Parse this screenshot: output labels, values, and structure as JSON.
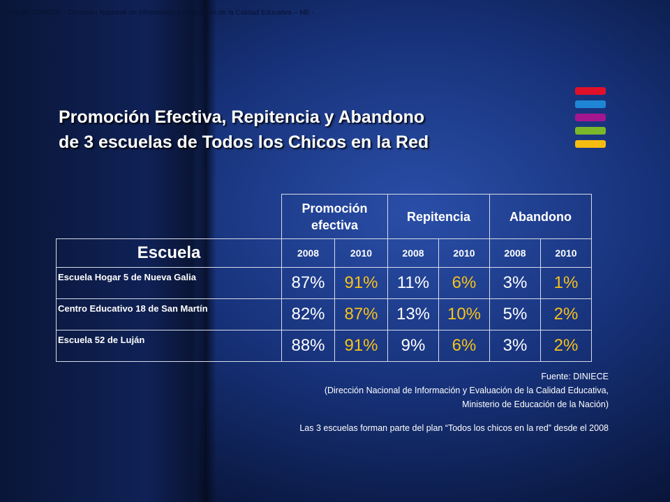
{
  "top_note": "Fuente: DINIECE – Dirección Nacional de Información y Evaluación de la Calidad Educativa – ME -",
  "title": {
    "line1": "Promoción Efectiva, Repitencia y Abandono",
    "line2": "de 3 escuelas de Todos los Chicos en la Red"
  },
  "colors": {
    "highlight": "#f7c21a",
    "logo": [
      "#e0102a",
      "#1f86d6",
      "#a4168f",
      "#7bb72b",
      "#f5bc12"
    ]
  },
  "table": {
    "school_header": "Escuela",
    "groups": [
      "Promoción efectiva",
      "Repitencia",
      "Abandono"
    ],
    "years": [
      "2008",
      "2010",
      "2008",
      "2010",
      "2008",
      "2010"
    ],
    "rows": [
      {
        "school": "Escuela Hogar 5 de Nueva Galia",
        "values": [
          "87%",
          "91%",
          "11%",
          "6%",
          "3%",
          "1%"
        ]
      },
      {
        "school": "Centro Educativo 18 de San Martín",
        "values": [
          "82%",
          "87%",
          "13%",
          "10%",
          "5%",
          "2%"
        ]
      },
      {
        "school": "Escuela 52 de Luján",
        "values": [
          "88%",
          "91%",
          "9%",
          "6%",
          "3%",
          "2%"
        ]
      }
    ]
  },
  "source": {
    "line1": "Fuente: DINIECE",
    "line2": "(Dirección Nacional de  Información y Evaluación de la Calidad Educativa,",
    "line3": "Ministerio de Educación de la Nación)",
    "line4": "Las 3 escuelas forman parte del plan “Todos los chicos en la red” desde el 2008"
  }
}
